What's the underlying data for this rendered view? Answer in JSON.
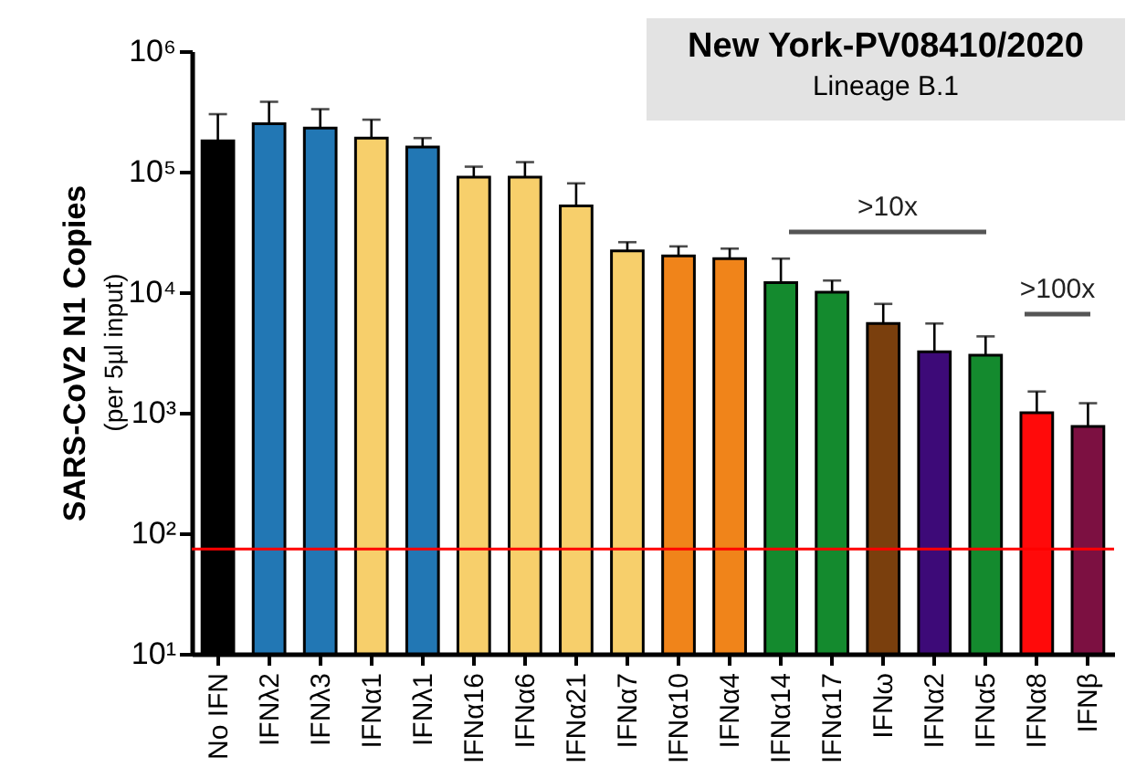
{
  "chart_data": {
    "type": "bar",
    "title": "New York-PV08410/2020",
    "subtitle": "Lineage B.1",
    "ylabel": "SARS-CoV2 N1 Copies",
    "categories": [
      "No IFN",
      "IFNλ2",
      "IFNλ3",
      "IFNα1",
      "IFNλ1",
      "IFNα16",
      "IFNα6",
      "IFNα21",
      "IFNα7",
      "IFNα10",
      "IFNα4",
      "IFNα14",
      "IFNα17",
      "IFNω",
      "IFNα2",
      "IFNα5",
      "IFNα8",
      "IFNβ"
    ],
    "values": [
      180000,
      250000,
      230000,
      190000,
      160000,
      90000,
      90000,
      52000,
      22000,
      20000,
      19000,
      12000,
      10000,
      5500,
      3200,
      3000,
      1000,
      770
    ],
    "errors": [
      [
        180000,
        300000
      ],
      [
        250000,
        380000
      ],
      [
        230000,
        330000
      ],
      [
        190000,
        270000
      ],
      [
        160000,
        190000
      ],
      [
        90000,
        110000
      ],
      [
        90000,
        120000
      ],
      [
        52000,
        80000
      ],
      [
        22000,
        26000
      ],
      [
        20000,
        24000
      ],
      [
        19000,
        23000
      ],
      [
        12000,
        19000
      ],
      [
        10000,
        12500
      ],
      [
        5500,
        8000
      ],
      [
        3200,
        5500
      ],
      [
        3000,
        4300
      ],
      [
        1000,
        1500
      ],
      [
        770,
        1200
      ]
    ],
    "colors": [
      "#000000",
      "#2277b4",
      "#2277b4",
      "#f7cf6b",
      "#2277b4",
      "#f7cf6b",
      "#f7cf6b",
      "#f7cf6b",
      "#f7cf6b",
      "#f0841a",
      "#f0841a",
      "#148a2e",
      "#148a2e",
      "#7a3f0d",
      "#3d0a78",
      "#148a2e",
      "#ff0a0a",
      "#7c1041"
    ],
    "log": true,
    "ylim": [
      10,
      1000000
    ],
    "yticks": [
      {
        "value": 10,
        "label": "10¹"
      },
      {
        "value": 100,
        "label": "10²"
      },
      {
        "value": 1000,
        "label": "10³"
      },
      {
        "value": 10000,
        "label": "10⁴"
      },
      {
        "value": 100000,
        "label": "10⁵"
      },
      {
        "value": 1000000,
        "label": "10⁶"
      }
    ],
    "grid": false,
    "ref_lines": [
      {
        "axis": "y",
        "value": 74,
        "color": "#ff0000"
      }
    ],
    "annotations": [
      "(per 5µl input)",
      ">10x",
      ">100x"
    ]
  }
}
